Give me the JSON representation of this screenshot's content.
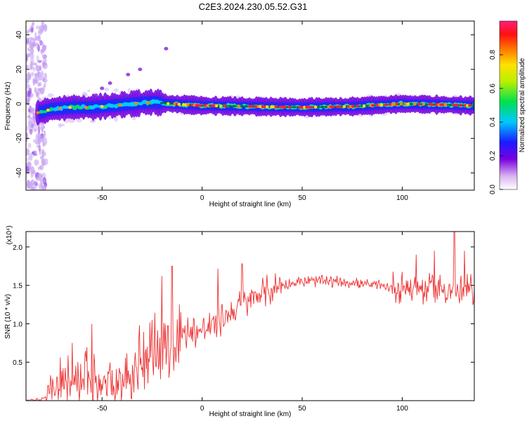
{
  "page": {
    "title": "C2E3.2024.230.05.52.G31"
  },
  "chart_data": [
    {
      "type": "heatmap",
      "title": "C2E3.2024.230.05.52.G31",
      "xlabel": "Height of straight line (km)",
      "ylabel": "Frequency (Hz)",
      "xlim": [
        -88,
        136
      ],
      "ylim": [
        -50,
        48
      ],
      "xticks": [
        -50,
        0,
        50,
        100
      ],
      "yticks": [
        -40,
        -20,
        0,
        20,
        40
      ],
      "colorbar": {
        "label": "Normalized spectral amplitude",
        "range": [
          0,
          1
        ],
        "ticks": [
          "0.0",
          "0.2",
          "0.4",
          "0.6",
          "0.8"
        ]
      },
      "ridge": [
        {
          "x": -85,
          "y": -6
        },
        {
          "x": -75,
          "y": -3
        },
        {
          "x": -65,
          "y": -2
        },
        {
          "x": -55,
          "y": -2
        },
        {
          "x": -45,
          "y": -1
        },
        {
          "x": -35,
          "y": 0
        },
        {
          "x": -25,
          "y": 1
        },
        {
          "x": -15,
          "y": 0
        },
        {
          "x": 0,
          "y": -1
        },
        {
          "x": 25,
          "y": -1.5
        },
        {
          "x": 50,
          "y": -2
        },
        {
          "x": 75,
          "y": -1.5
        },
        {
          "x": 100,
          "y": 0
        },
        {
          "x": 120,
          "y": -0.5
        },
        {
          "x": 135,
          "y": -1
        }
      ]
    },
    {
      "type": "line",
      "xlabel": "Height of straight line (km)",
      "ylabel": "SNR (10 * v/v)",
      "y_multiplier": "(x10⁴)",
      "xlim": [
        -88,
        136
      ],
      "ylim": [
        0,
        2.2
      ],
      "xticks": [
        -50,
        0,
        50,
        100
      ],
      "yticks": [
        "0.5",
        "1.0",
        "1.5",
        "2.0"
      ],
      "color": "#ee3333",
      "envelope": [
        {
          "x": -88,
          "y": 0.0
        },
        {
          "x": -80,
          "y": 0.02
        },
        {
          "x": -75,
          "y": 0.12
        },
        {
          "x": -70,
          "y": 0.3
        },
        {
          "x": -60,
          "y": 0.35
        },
        {
          "x": -50,
          "y": 0.2
        },
        {
          "x": -40,
          "y": 0.32
        },
        {
          "x": -30,
          "y": 0.55
        },
        {
          "x": -20,
          "y": 0.75
        },
        {
          "x": -10,
          "y": 0.9
        },
        {
          "x": 0,
          "y": 0.9
        },
        {
          "x": 10,
          "y": 1.05
        },
        {
          "x": 20,
          "y": 1.25
        },
        {
          "x": 30,
          "y": 1.4
        },
        {
          "x": 40,
          "y": 1.5
        },
        {
          "x": 50,
          "y": 1.55
        },
        {
          "x": 60,
          "y": 1.55
        },
        {
          "x": 70,
          "y": 1.55
        },
        {
          "x": 80,
          "y": 1.52
        },
        {
          "x": 90,
          "y": 1.48
        },
        {
          "x": 100,
          "y": 1.48
        },
        {
          "x": 110,
          "y": 1.45
        },
        {
          "x": 120,
          "y": 1.45
        },
        {
          "x": 130,
          "y": 1.42
        },
        {
          "x": 136,
          "y": 1.45
        }
      ],
      "peaks": [
        {
          "x": -65,
          "y": 0.75
        },
        {
          "x": -55,
          "y": 1.0
        },
        {
          "x": -25,
          "y": 1.05
        },
        {
          "x": -15,
          "y": 1.75
        },
        {
          "x": -20,
          "y": 1.62
        },
        {
          "x": 8,
          "y": 1.72
        },
        {
          "x": 20,
          "y": 1.78
        },
        {
          "x": 107,
          "y": 1.9
        },
        {
          "x": 116,
          "y": 1.95
        },
        {
          "x": 126,
          "y": 2.22
        },
        {
          "x": 131,
          "y": 1.95
        }
      ]
    }
  ]
}
